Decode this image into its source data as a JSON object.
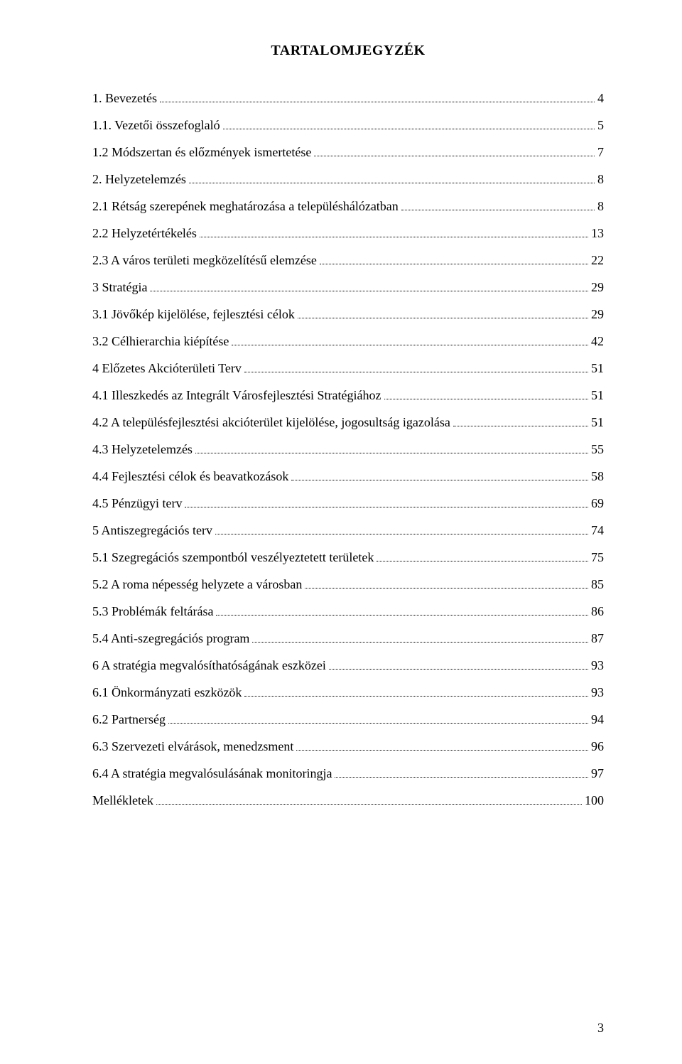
{
  "title": "TARTALOMJEGYZÉK",
  "page_number": "3",
  "entries": [
    {
      "label": "1. Bevezetés",
      "page": "4"
    },
    {
      "label": "1.1. Vezetői összefoglaló",
      "page": "5"
    },
    {
      "label": "1.2 Módszertan és előzmények ismertetése",
      "page": "7"
    },
    {
      "label": "2. Helyzetelemzés",
      "page": "8"
    },
    {
      "label": "2.1 Rétság szerepének meghatározása a településhálózatban",
      "page": "8"
    },
    {
      "label": "2.2 Helyzetértékelés",
      "page": "13"
    },
    {
      "label": "2.3 A város területi megközelítésű elemzése",
      "page": "22"
    },
    {
      "label": "3 Stratégia",
      "page": "29"
    },
    {
      "label": "3.1 Jövőkép kijelölése, fejlesztési célok",
      "page": "29"
    },
    {
      "label": "3.2 Célhierarchia kiépítése",
      "page": "42"
    },
    {
      "label": "4 Előzetes Akcióterületi Terv",
      "page": "51"
    },
    {
      "label": "4.1 Illeszkedés az Integrált Városfejlesztési Stratégiához",
      "page": "51"
    },
    {
      "label": "4.2 A településfejlesztési akcióterület kijelölése, jogosultság igazolása",
      "page": "51"
    },
    {
      "label": "4.3 Helyzetelemzés",
      "page": "55"
    },
    {
      "label": "4.4 Fejlesztési célok és beavatkozások",
      "page": "58"
    },
    {
      "label": "4.5 Pénzügyi terv",
      "page": "69"
    },
    {
      "label": "5 Antiszegregációs terv",
      "page": "74"
    },
    {
      "label": "5.1 Szegregációs szempontból veszélyeztetett területek",
      "page": "75"
    },
    {
      "label": "5.2 A roma népesség helyzete a városban",
      "page": "85"
    },
    {
      "label": "5.3 Problémák feltárása",
      "page": "86"
    },
    {
      "label": "5.4 Anti-szegregációs program",
      "page": "87"
    },
    {
      "label": "6 A stratégia megvalósíthatóságának eszközei",
      "page": "93"
    },
    {
      "label": "6.1 Önkormányzati eszközök",
      "page": "93"
    },
    {
      "label": "6.2 Partnerség",
      "page": "94"
    },
    {
      "label": "6.3 Szervezeti elvárások, menedzsment",
      "page": "96"
    },
    {
      "label": "6.4 A stratégia megvalósulásának monitoringja",
      "page": "97"
    },
    {
      "label": "Mellékletek",
      "page": "100"
    }
  ]
}
